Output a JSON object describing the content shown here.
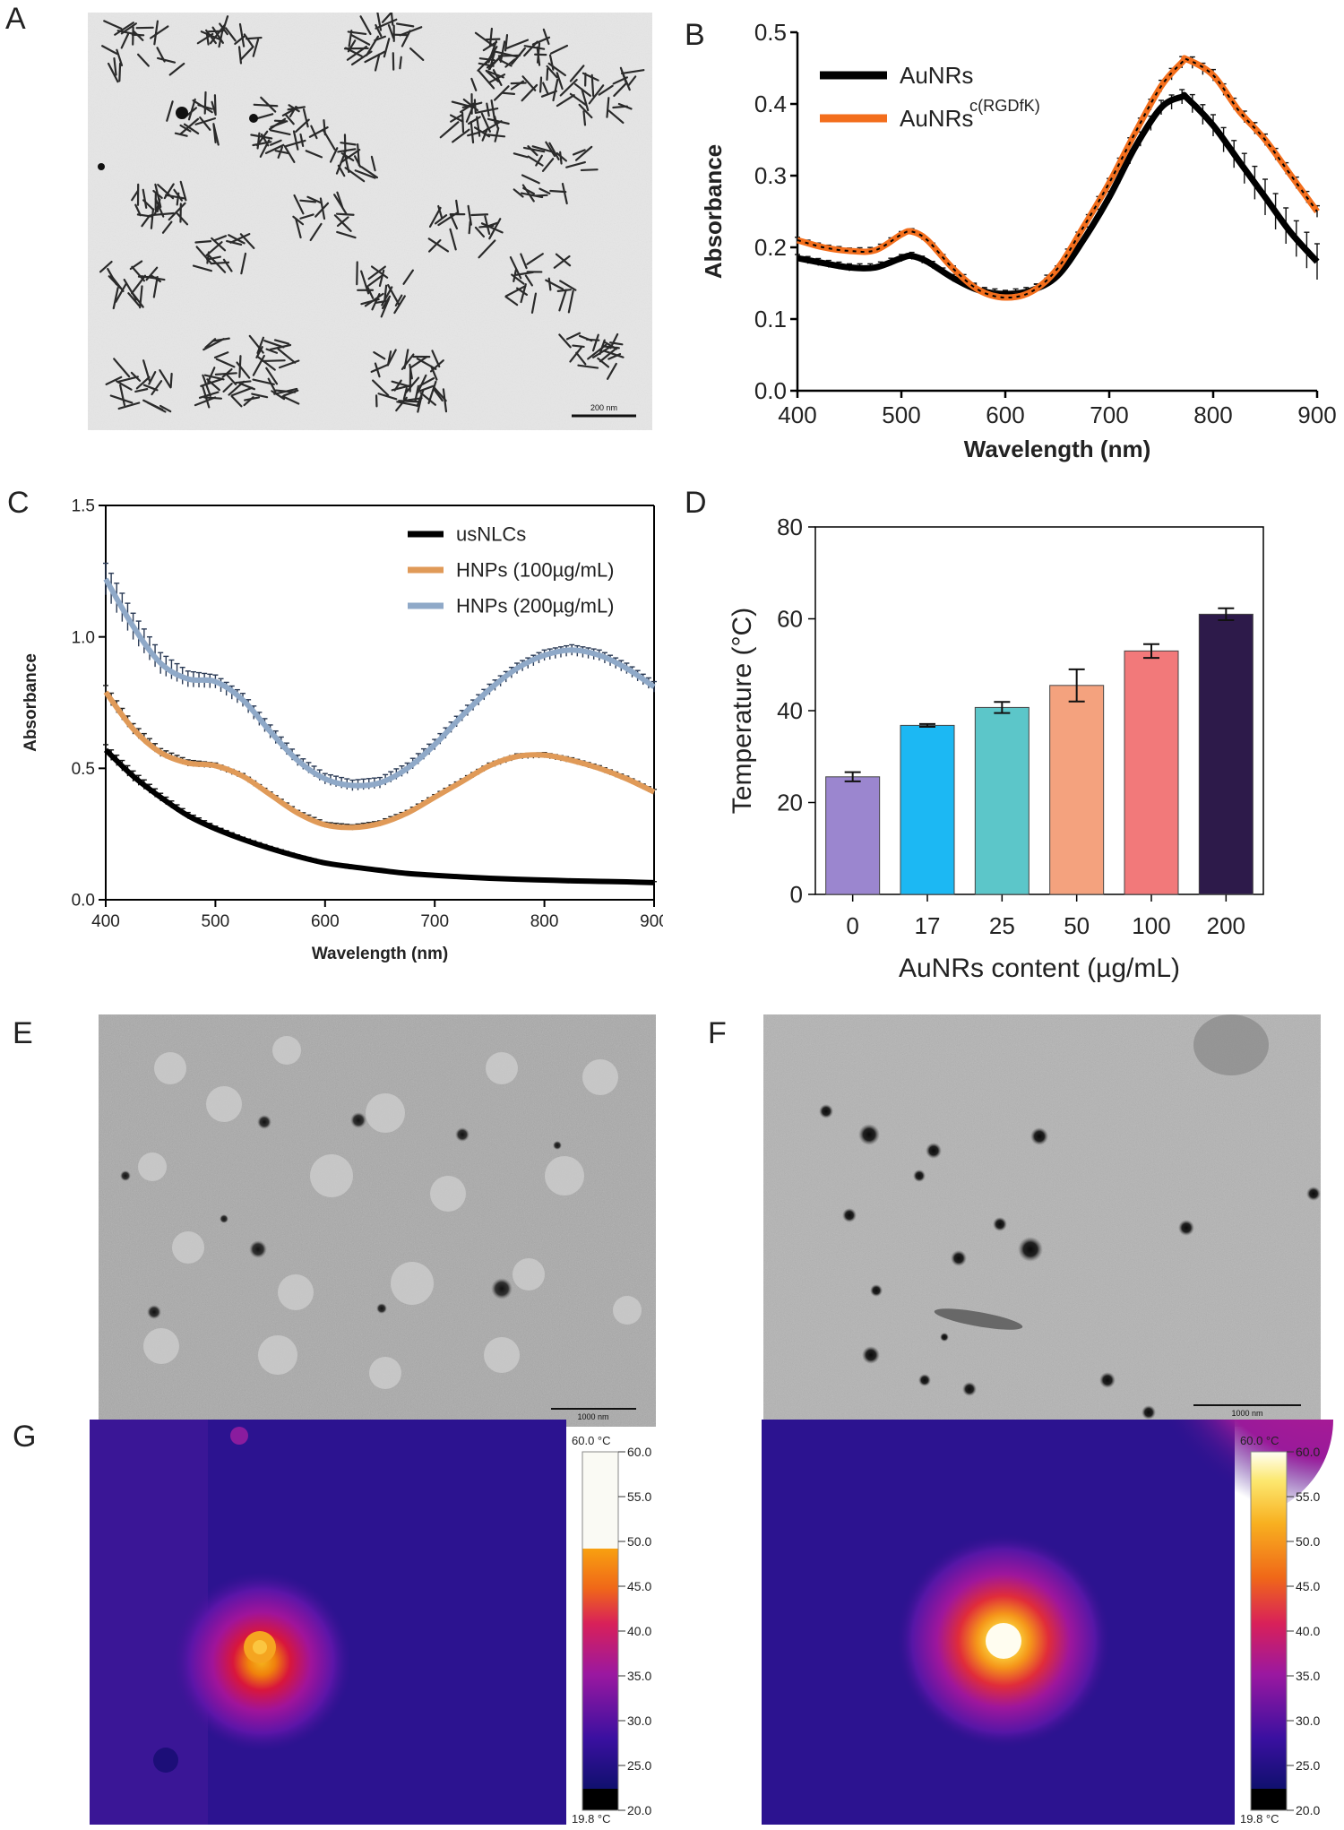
{
  "panels": {
    "A": "A",
    "B": "B",
    "C": "C",
    "D": "D",
    "E": "E",
    "F": "F",
    "G": "G"
  },
  "micrographs": {
    "A": {
      "scale_bar": "200 nm"
    },
    "E": {
      "scale_bar": "1000 nm"
    },
    "F": {
      "scale_bar": "1000 nm"
    }
  },
  "thermal": {
    "left": {
      "max_label": "60.0 °C",
      "min_label": "19.8 °C",
      "ticks": [
        "60.0",
        "55.0",
        "50.0",
        "45.0",
        "40.0",
        "35.0",
        "30.0",
        "25.0",
        "20.0"
      ],
      "saturation": 50
    },
    "right": {
      "max_label": "60.0 °C",
      "min_label": "19.8 °C",
      "ticks": [
        "60.0",
        "55.0",
        "50.0",
        "45.0",
        "40.0",
        "35.0",
        "30.0",
        "25.0",
        "20.0"
      ],
      "saturation": 60
    }
  },
  "chart_data": [
    {
      "id": "B",
      "type": "line",
      "xlabel": "Wavelength (nm)",
      "ylabel": "Absorbance",
      "xlim": [
        400,
        900
      ],
      "ylim": [
        0.0,
        0.5
      ],
      "xticks": [
        "400",
        "500",
        "600",
        "700",
        "800",
        "900"
      ],
      "yticks": [
        "0.0",
        "0.1",
        "0.2",
        "0.3",
        "0.4",
        "0.5"
      ],
      "legend_position": "top-left",
      "x": [
        400,
        425,
        450,
        475,
        500,
        510,
        525,
        550,
        575,
        600,
        625,
        650,
        675,
        700,
        725,
        750,
        770,
        775,
        800,
        825,
        850,
        875,
        900
      ],
      "series": [
        {
          "name": "AuNRs",
          "color": "#000000",
          "values": [
            0.185,
            0.178,
            0.172,
            0.172,
            0.185,
            0.188,
            0.18,
            0.157,
            0.14,
            0.135,
            0.14,
            0.16,
            0.21,
            0.27,
            0.34,
            0.395,
            0.41,
            0.408,
            0.37,
            0.32,
            0.27,
            0.22,
            0.18
          ],
          "errors": [
            0.005,
            0.005,
            0.005,
            0.005,
            0.005,
            0.005,
            0.005,
            0.005,
            0.005,
            0.005,
            0.005,
            0.005,
            0.006,
            0.008,
            0.01,
            0.01,
            0.01,
            0.012,
            0.015,
            0.02,
            0.025,
            0.025,
            0.025
          ]
        },
        {
          "name": "AuNRs",
          "name_sup": "c(RGDfK)",
          "color": "#f36e1c",
          "values": [
            0.21,
            0.2,
            0.195,
            0.196,
            0.218,
            0.222,
            0.21,
            0.17,
            0.14,
            0.13,
            0.138,
            0.17,
            0.228,
            0.29,
            0.36,
            0.425,
            0.458,
            0.462,
            0.44,
            0.39,
            0.35,
            0.3,
            0.25
          ],
          "errors": [
            0.004,
            0.004,
            0.004,
            0.004,
            0.004,
            0.004,
            0.004,
            0.004,
            0.004,
            0.004,
            0.004,
            0.004,
            0.005,
            0.006,
            0.007,
            0.008,
            0.008,
            0.008,
            0.008,
            0.008,
            0.008,
            0.008,
            0.008
          ]
        }
      ]
    },
    {
      "id": "C",
      "type": "line",
      "xlabel": "Wavelength (nm)",
      "ylabel": "Absorbance",
      "xlim": [
        400,
        900
      ],
      "ylim": [
        0.0,
        1.5
      ],
      "xticks": [
        "400",
        "500",
        "600",
        "700",
        "800",
        "900"
      ],
      "yticks": [
        "0.0",
        "0.5",
        "1.0",
        "1.5"
      ],
      "legend_position": "top-right",
      "x": [
        400,
        425,
        450,
        475,
        500,
        525,
        550,
        575,
        600,
        625,
        650,
        675,
        700,
        725,
        750,
        775,
        800,
        825,
        850,
        875,
        900
      ],
      "series": [
        {
          "name": "usNLCs",
          "color": "#000000",
          "values": [
            0.57,
            0.47,
            0.39,
            0.32,
            0.27,
            0.23,
            0.195,
            0.165,
            0.14,
            0.125,
            0.112,
            0.1,
            0.093,
            0.087,
            0.082,
            0.078,
            0.075,
            0.072,
            0.07,
            0.068,
            0.065
          ],
          "errors": [
            0.02,
            0.02,
            0.015,
            0.012,
            0.01,
            0.008,
            0.008,
            0.006,
            0.005,
            0.005,
            0.005,
            0.005,
            0.004,
            0.004,
            0.004,
            0.004,
            0.004,
            0.004,
            0.004,
            0.004,
            0.004
          ]
        },
        {
          "name": "HNPs (100µg/mL)",
          "color": "#e09a58",
          "values": [
            0.79,
            0.65,
            0.56,
            0.52,
            0.51,
            0.47,
            0.4,
            0.33,
            0.285,
            0.275,
            0.29,
            0.33,
            0.39,
            0.45,
            0.51,
            0.545,
            0.55,
            0.53,
            0.5,
            0.46,
            0.41
          ],
          "errors": [
            0.025,
            0.02,
            0.015,
            0.012,
            0.01,
            0.01,
            0.01,
            0.01,
            0.01,
            0.01,
            0.01,
            0.01,
            0.01,
            0.01,
            0.01,
            0.01,
            0.01,
            0.01,
            0.01,
            0.01,
            0.01
          ]
        },
        {
          "name": "HNPs (200µg/mL)",
          "color": "#8fa9c8",
          "values": [
            1.22,
            1.04,
            0.9,
            0.84,
            0.83,
            0.76,
            0.64,
            0.53,
            0.46,
            0.435,
            0.445,
            0.5,
            0.59,
            0.7,
            0.8,
            0.88,
            0.93,
            0.95,
            0.93,
            0.88,
            0.81
          ],
          "errors": [
            0.06,
            0.05,
            0.04,
            0.03,
            0.025,
            0.025,
            0.025,
            0.02,
            0.02,
            0.02,
            0.02,
            0.02,
            0.02,
            0.02,
            0.02,
            0.02,
            0.02,
            0.02,
            0.02,
            0.02,
            0.02
          ]
        }
      ]
    },
    {
      "id": "D",
      "type": "bar",
      "xlabel": "AuNRs content (µg/mL)",
      "ylabel": "Temperature (°C)",
      "ylim": [
        0,
        80
      ],
      "yticks": [
        "0",
        "20",
        "40",
        "60",
        "80"
      ],
      "categories": [
        "0",
        "17",
        "25",
        "50",
        "100",
        "200"
      ],
      "values": [
        25.6,
        36.8,
        40.7,
        45.5,
        53.0,
        61.0
      ],
      "errors": [
        1.0,
        0.3,
        1.2,
        3.5,
        1.5,
        1.3
      ],
      "colors": [
        "#9b86cf",
        "#1cb8f3",
        "#5cc6c9",
        "#f4a27e",
        "#f2797a",
        "#2d1a4a"
      ]
    }
  ]
}
